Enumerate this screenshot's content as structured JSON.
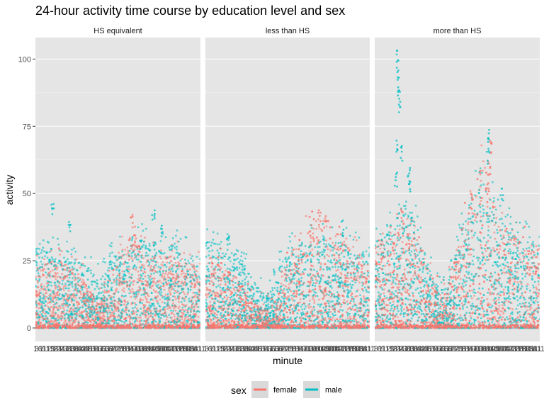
{
  "chart_data": {
    "type": "scatter",
    "title": "24-hour activity time course by education level and sex",
    "xlabel": "minute",
    "ylabel": "activity",
    "ylim": [
      -5,
      108
    ],
    "yticks": [
      0,
      25,
      50,
      75,
      100
    ],
    "x_range": [
      1,
      1440
    ],
    "grid": true,
    "legend": {
      "title": "sex",
      "position": "bottom",
      "entries": [
        {
          "name": "female",
          "color": "#F8766D"
        },
        {
          "name": "male",
          "color": "#00BFC4"
        }
      ]
    },
    "facets": [
      {
        "name": "HS equivalent",
        "band_x": [
          0,
          60,
          120,
          180,
          240,
          300,
          360,
          420,
          480,
          540,
          600,
          660,
          720,
          780,
          840,
          900,
          960,
          1020,
          1080,
          1140,
          1200,
          1260,
          1320,
          1380,
          1440
        ],
        "female_upper": [
          22,
          24,
          25,
          26,
          24,
          22,
          20,
          18,
          14,
          10,
          12,
          20,
          26,
          30,
          36,
          30,
          28,
          27,
          26,
          26,
          27,
          26,
          25,
          24,
          22
        ],
        "male_upper": [
          30,
          30,
          29,
          28,
          27,
          26,
          25,
          24,
          22,
          18,
          20,
          26,
          28,
          30,
          34,
          36,
          34,
          32,
          30,
          30,
          31,
          30,
          28,
          27,
          26
        ],
        "female_peaks": [
          [
            840,
            43
          ],
          [
            870,
            38
          ],
          [
            900,
            34
          ]
        ],
        "male_peaks": [
          [
            150,
            47
          ],
          [
            300,
            41
          ],
          [
            1030,
            45
          ],
          [
            1100,
            40
          ]
        ]
      },
      {
        "name": "less than HS",
        "band_x": [
          0,
          60,
          120,
          180,
          240,
          300,
          360,
          420,
          480,
          540,
          600,
          660,
          720,
          780,
          840,
          900,
          960,
          1020,
          1080,
          1140,
          1200,
          1260,
          1320,
          1380,
          1440
        ],
        "female_upper": [
          24,
          25,
          24,
          22,
          20,
          18,
          14,
          10,
          8,
          7,
          9,
          16,
          24,
          30,
          34,
          38,
          40,
          42,
          38,
          34,
          32,
          30,
          28,
          26,
          24
        ],
        "male_upper": [
          32,
          33,
          32,
          30,
          28,
          26,
          22,
          18,
          14,
          12,
          16,
          24,
          28,
          30,
          32,
          33,
          34,
          34,
          33,
          32,
          32,
          31,
          30,
          29,
          28
        ],
        "female_peaks": [
          [
            1000,
            44
          ],
          [
            1050,
            42
          ]
        ],
        "male_peaks": [
          [
            200,
            37
          ],
          [
            1200,
            40
          ]
        ]
      },
      {
        "name": "more than HS",
        "band_x": [
          0,
          60,
          120,
          180,
          240,
          300,
          360,
          420,
          480,
          540,
          600,
          660,
          720,
          780,
          840,
          900,
          960,
          1020,
          1080,
          1140,
          1200,
          1260,
          1320,
          1380,
          1440
        ],
        "female_upper": [
          30,
          32,
          34,
          36,
          40,
          38,
          34,
          28,
          20,
          14,
          12,
          18,
          30,
          42,
          50,
          60,
          68,
          48,
          40,
          36,
          34,
          33,
          32,
          31,
          30
        ],
        "male_upper": [
          32,
          34,
          36,
          40,
          46,
          44,
          40,
          32,
          22,
          16,
          14,
          20,
          30,
          40,
          48,
          56,
          52,
          50,
          46,
          42,
          38,
          36,
          34,
          33,
          32
        ],
        "female_peaks": [
          [
            1020,
            70
          ],
          [
            1000,
            62
          ],
          [
            980,
            55
          ],
          [
            850,
            50
          ],
          [
            240,
            45
          ]
        ],
        "male_peaks": [
          [
            200,
            104
          ],
          [
            205,
            97
          ],
          [
            210,
            90
          ],
          [
            215,
            86
          ],
          [
            190,
            70
          ],
          [
            230,
            68
          ],
          [
            185,
            58
          ],
          [
            300,
            60
          ],
          [
            305,
            56
          ],
          [
            1000,
            74
          ],
          [
            990,
            67
          ],
          [
            1110,
            52
          ]
        ]
      }
    ]
  }
}
